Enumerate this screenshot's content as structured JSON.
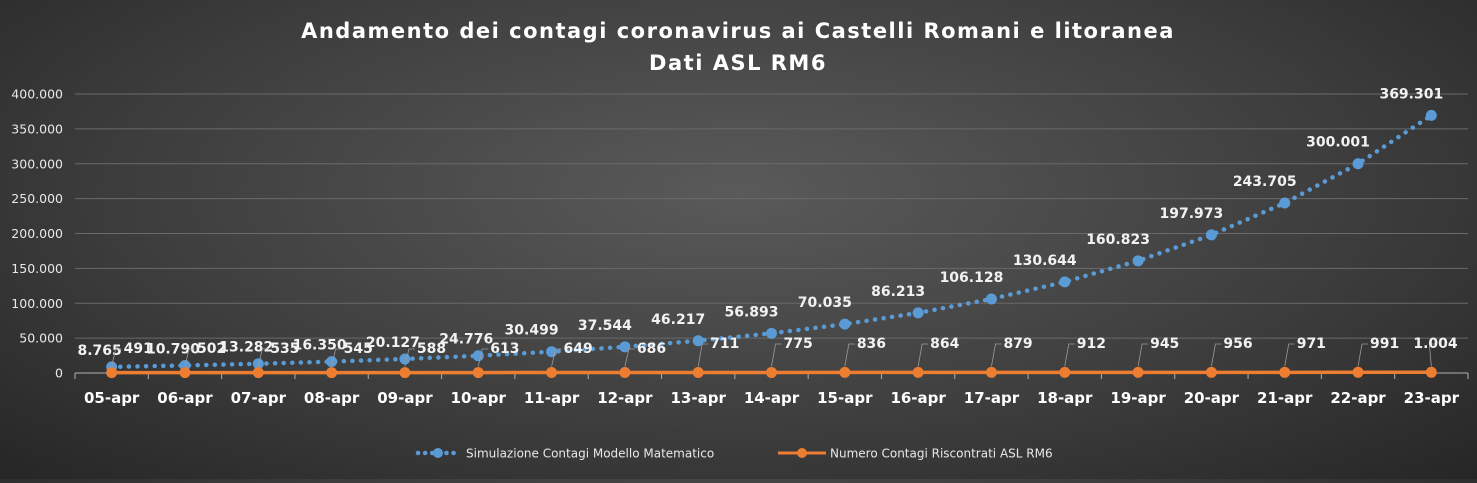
{
  "chart_data": {
    "type": "line",
    "title": "Andamento dei contagi coronavirus ai Castelli Romani e litoranea",
    "subtitle": "Dati ASL RM6",
    "categories": [
      "05-apr",
      "06-apr",
      "07-apr",
      "08-apr",
      "09-apr",
      "10-apr",
      "11-apr",
      "12-apr",
      "13-apr",
      "14-apr",
      "15-apr",
      "16-apr",
      "17-apr",
      "18-apr",
      "19-apr",
      "20-apr",
      "21-apr",
      "22-apr",
      "23-apr"
    ],
    "y_ticks": [
      "0",
      "50.000",
      "100.000",
      "150.000",
      "200.000",
      "250.000",
      "300.000",
      "350.000",
      "400.000"
    ],
    "ylim": [
      0,
      400000
    ],
    "grid": true,
    "legend_position": "bottom",
    "series": [
      {
        "name": "Simulazione Contagi Modello Matematico",
        "style": "dotted",
        "color": "#5b9bd5",
        "values": [
          8765,
          10790,
          13282,
          16350,
          20127,
          24776,
          30499,
          37544,
          46217,
          56893,
          70035,
          86213,
          106128,
          130644,
          160823,
          197973,
          243705,
          300001,
          369301
        ],
        "labels": [
          "8.765",
          "10.790",
          "13.282",
          "16.350",
          "20.127",
          "24.776",
          "30.499",
          "37.544",
          "46.217",
          "56.893",
          "70.035",
          "86.213",
          "106.128",
          "130.644",
          "160.823",
          "197.973",
          "243.705",
          "300.001",
          "369.301"
        ]
      },
      {
        "name": "Numero Contagi Riscontrati ASL RM6",
        "style": "solid",
        "color": "#ed7d31",
        "values": [
          491,
          502,
          535,
          545,
          588,
          613,
          649,
          686,
          711,
          775,
          836,
          864,
          879,
          912,
          945,
          956,
          971,
          991,
          1004
        ],
        "labels": [
          "491",
          "502",
          "535",
          "545",
          "588",
          "613",
          "649",
          "686",
          "711",
          "775",
          "836",
          "864",
          "879",
          "912",
          "945",
          "956",
          "971",
          "991",
          "1.004"
        ]
      }
    ]
  }
}
